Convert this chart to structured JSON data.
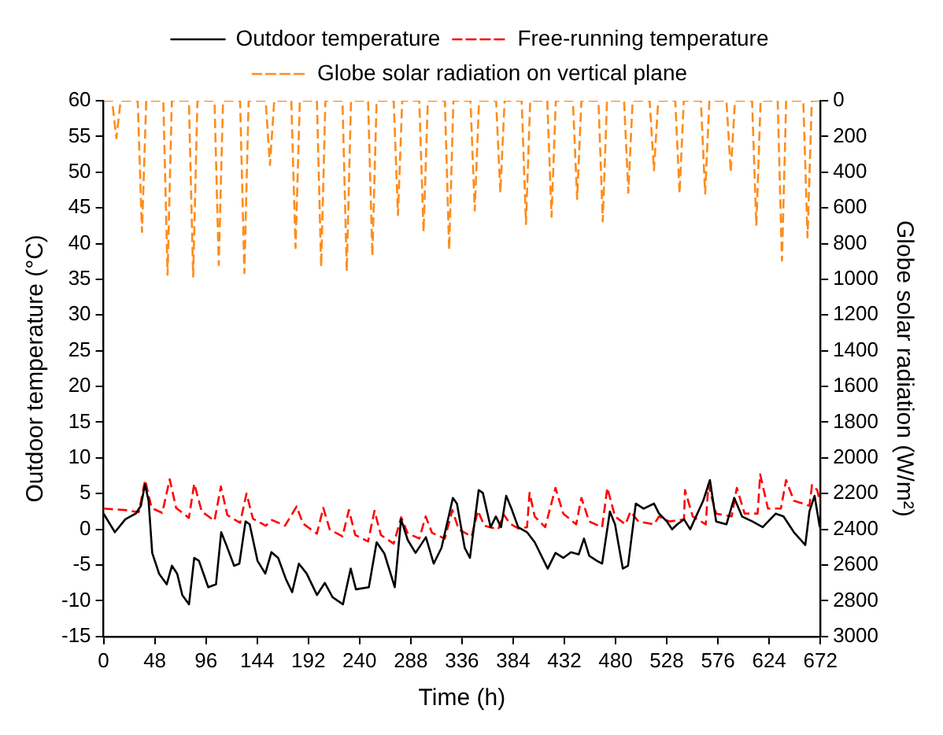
{
  "chart_data": {
    "type": "line",
    "xlabel": "Time (h)",
    "ylabel": "Outdoor temperature (°C)",
    "y2label": "Globe solar radiation (W/m²)",
    "xlim": [
      0,
      672
    ],
    "xticks": [
      0,
      48,
      96,
      144,
      192,
      240,
      288,
      336,
      384,
      432,
      480,
      528,
      576,
      624,
      672
    ],
    "ylim": [
      -15,
      60
    ],
    "yticks": [
      -15,
      -10,
      -5,
      0,
      5,
      10,
      15,
      20,
      25,
      30,
      35,
      40,
      45,
      50,
      55,
      60
    ],
    "y2lim": [
      3000,
      0
    ],
    "y2ticks": [
      3000,
      2800,
      2600,
      2400,
      2200,
      2000,
      1800,
      1600,
      1400,
      1200,
      1000,
      800,
      600,
      400,
      200,
      0
    ],
    "grid": false,
    "legend": "top",
    "marker": "none",
    "series": [
      {
        "name": "Outdoor temperature",
        "color": "#000000",
        "line_style": "solid",
        "x": [
          0,
          10.6,
          20.4,
          30.1,
          35,
          38.8,
          42.2,
          45.6,
          52,
          59.2,
          64.1,
          69,
          73.8,
          80.1,
          85,
          89.4,
          98.1,
          105.4,
          110.3,
          115.1,
          122.4,
          127.3,
          133.1,
          137,
          144.3,
          151.6,
          157.4,
          163.7,
          171,
          176.8,
          183.1,
          190.4,
          200.1,
          207.4,
          214.7,
          224.4,
          231.7,
          236.6,
          248.7,
          256,
          263.3,
          273,
          278.9,
          285.2,
          292.5,
          302.2,
          309.5,
          316.8,
          327.5,
          331.3,
          338.6,
          343.5,
          351.7,
          355.6,
          362.9,
          367.8,
          372.6,
          377.5,
          382.4,
          388.7,
          397,
          404.2,
          416.4,
          423.7,
          431,
          438.2,
          445.5,
          450.4,
          455.3,
          462.5,
          467.4,
          474.7,
          479.5,
          486.8,
          491.7,
          499,
          506.3,
          516,
          520.8,
          528.1,
          533,
          537.9,
          544.2,
          550,
          562.2,
          568.5,
          574.3,
          584,
          591.3,
          598.6,
          608.3,
          618,
          630.2,
          637.5,
          647.2,
          657.9,
          661.8,
          666.6,
          671.5
        ],
        "values": [
          2.2,
          -0.4,
          1.4,
          2.2,
          3.3,
          6.3,
          4.0,
          -3.3,
          -6.2,
          -7.7,
          -5.1,
          -6.2,
          -9.2,
          -10.5,
          -4.0,
          -4.4,
          -8.1,
          -7.7,
          -0.4,
          -2.2,
          -5.1,
          -4.8,
          1.1,
          0.7,
          -4.4,
          -6.2,
          -3.2,
          -4.0,
          -7.0,
          -8.8,
          -4.8,
          -6.2,
          -9.2,
          -7.5,
          -9.5,
          -10.5,
          -5.5,
          -8.4,
          -8.1,
          -1.8,
          -3.4,
          -8.1,
          1.4,
          -1.5,
          -3.3,
          -1.1,
          -4.8,
          -2.6,
          4.4,
          3.6,
          -2.6,
          -4.0,
          5.5,
          5.1,
          0.3,
          1.8,
          0.3,
          4.7,
          2.9,
          0.3,
          -0.4,
          -1.8,
          -5.5,
          -3.3,
          -4.0,
          -3.2,
          -3.5,
          -1.3,
          -3.7,
          -4.4,
          -4.8,
          2.5,
          0.7,
          -5.5,
          -5.1,
          3.6,
          2.9,
          3.6,
          2.2,
          1.1,
          0.0,
          0.7,
          1.4,
          0.0,
          4.0,
          6.9,
          1.1,
          0.7,
          4.4,
          1.8,
          1.1,
          0.3,
          2.2,
          1.8,
          -0.4,
          -2.2,
          2.5,
          4.7,
          0.3
        ]
      },
      {
        "name": "Free-running temperature",
        "color": "#ff0000",
        "line_style": "dashed",
        "x": [
          0,
          20,
          33,
          39,
          45,
          55,
          62,
          68,
          80,
          85,
          92,
          104,
          110,
          116,
          128,
          134,
          140,
          152,
          158,
          170,
          181,
          187,
          200,
          206,
          212,
          224,
          230,
          236,
          248,
          254,
          260,
          272,
          279,
          285,
          296,
          302,
          308,
          320,
          327,
          333,
          345,
          351,
          357,
          370,
          375,
          381,
          389,
          397,
          399.4,
          404.2,
          414,
          423.7,
          431,
          443.1,
          448,
          455.3,
          467.4,
          472.3,
          479.5,
          489.3,
          494.1,
          501.4,
          516,
          520.8,
          530.6,
          544.2,
          545.1,
          552.4,
          564.6,
          567,
          574.3,
          588.9,
          593.7,
          601,
          613.2,
          615.6,
          622.9,
          635,
          639.9,
          647.2,
          661.8,
          664.2,
          669.1,
          672
        ],
        "values": [
          2.9,
          2.7,
          2.4,
          6.9,
          3.0,
          2.3,
          7.0,
          3.0,
          1.6,
          6.4,
          2.5,
          1.2,
          6.0,
          2.0,
          0.9,
          5.0,
          1.5,
          0.5,
          1.3,
          0.5,
          3.2,
          0.8,
          -0.6,
          3.0,
          0.0,
          -1.0,
          2.7,
          -0.8,
          -1.7,
          2.6,
          -0.8,
          -2.0,
          1.7,
          -0.5,
          -1.3,
          1.8,
          -0.5,
          -1.3,
          2.7,
          0.0,
          -1.0,
          2.6,
          0.5,
          0.0,
          2.1,
          0.8,
          0.1,
          0.3,
          5.1,
          1.8,
          0.3,
          5.8,
          2.2,
          0.7,
          4.4,
          1.1,
          0.3,
          5.8,
          1.8,
          0.7,
          2.5,
          1.1,
          0.7,
          1.8,
          1.1,
          1.4,
          5.5,
          1.8,
          0.7,
          6.2,
          2.2,
          1.8,
          5.8,
          2.2,
          2.2,
          7.7,
          2.9,
          2.9,
          6.9,
          4.0,
          3.3,
          6.2,
          5.5,
          3.6
        ]
      },
      {
        "name": "Globe solar radiation on vertical plane",
        "color": "#ff8c1a",
        "line_style": "dashed",
        "axis": "y2",
        "x": [
          0,
          8,
          10,
          12,
          14,
          16,
          32,
          34,
          36,
          38,
          40,
          56,
          58,
          60,
          62,
          64,
          80,
          82,
          84,
          86,
          88,
          104,
          106,
          108,
          110,
          112,
          128,
          130,
          132,
          134,
          136,
          152,
          154,
          156,
          158,
          160,
          176,
          178,
          180,
          182,
          184,
          200,
          202,
          204,
          206,
          208,
          224,
          226,
          228,
          230,
          232,
          248,
          250,
          252,
          254,
          256,
          272,
          274,
          276,
          278,
          280,
          296,
          298,
          300,
          302,
          304,
          320,
          322,
          324,
          326,
          328,
          344,
          346,
          348,
          350,
          352,
          368,
          370,
          372,
          374,
          376,
          392,
          394,
          396,
          398,
          400,
          416,
          418,
          420,
          422,
          424,
          440,
          442,
          444,
          446,
          448,
          464,
          466,
          468,
          470,
          472,
          488,
          490,
          492,
          494,
          496,
          512,
          514,
          516,
          518,
          520,
          536,
          538,
          540,
          542,
          544,
          560,
          562,
          564,
          566,
          568,
          584,
          586,
          588,
          590,
          592,
          608,
          610,
          612,
          614,
          616,
          632,
          634,
          636,
          638,
          640,
          656,
          658,
          660,
          662,
          664,
          672
        ],
        "values": [
          0,
          0,
          105,
          210,
          105,
          0,
          0,
          368,
          735,
          368,
          0,
          0,
          488,
          975,
          488,
          0,
          0,
          493,
          985,
          493,
          0,
          0,
          460,
          920,
          460,
          0,
          0,
          483,
          965,
          483,
          0,
          0,
          180,
          360,
          180,
          0,
          0,
          413,
          825,
          413,
          0,
          0,
          465,
          930,
          465,
          0,
          0,
          478,
          955,
          478,
          0,
          0,
          435,
          870,
          435,
          0,
          0,
          320,
          640,
          320,
          0,
          0,
          368,
          735,
          368,
          0,
          0,
          418,
          835,
          418,
          0,
          0,
          308,
          615,
          308,
          0,
          0,
          258,
          515,
          258,
          0,
          0,
          345,
          690,
          345,
          0,
          0,
          325,
          650,
          325,
          0,
          0,
          275,
          550,
          275,
          0,
          0,
          338,
          675,
          338,
          0,
          0,
          258,
          515,
          258,
          0,
          0,
          195,
          390,
          195,
          0,
          0,
          260,
          520,
          260,
          0,
          0,
          260,
          520,
          260,
          0,
          0,
          200,
          400,
          200,
          0,
          0,
          350,
          700,
          350,
          0,
          0,
          448,
          895,
          448,
          0,
          0,
          383,
          765,
          383,
          0,
          0
        ]
      }
    ]
  }
}
